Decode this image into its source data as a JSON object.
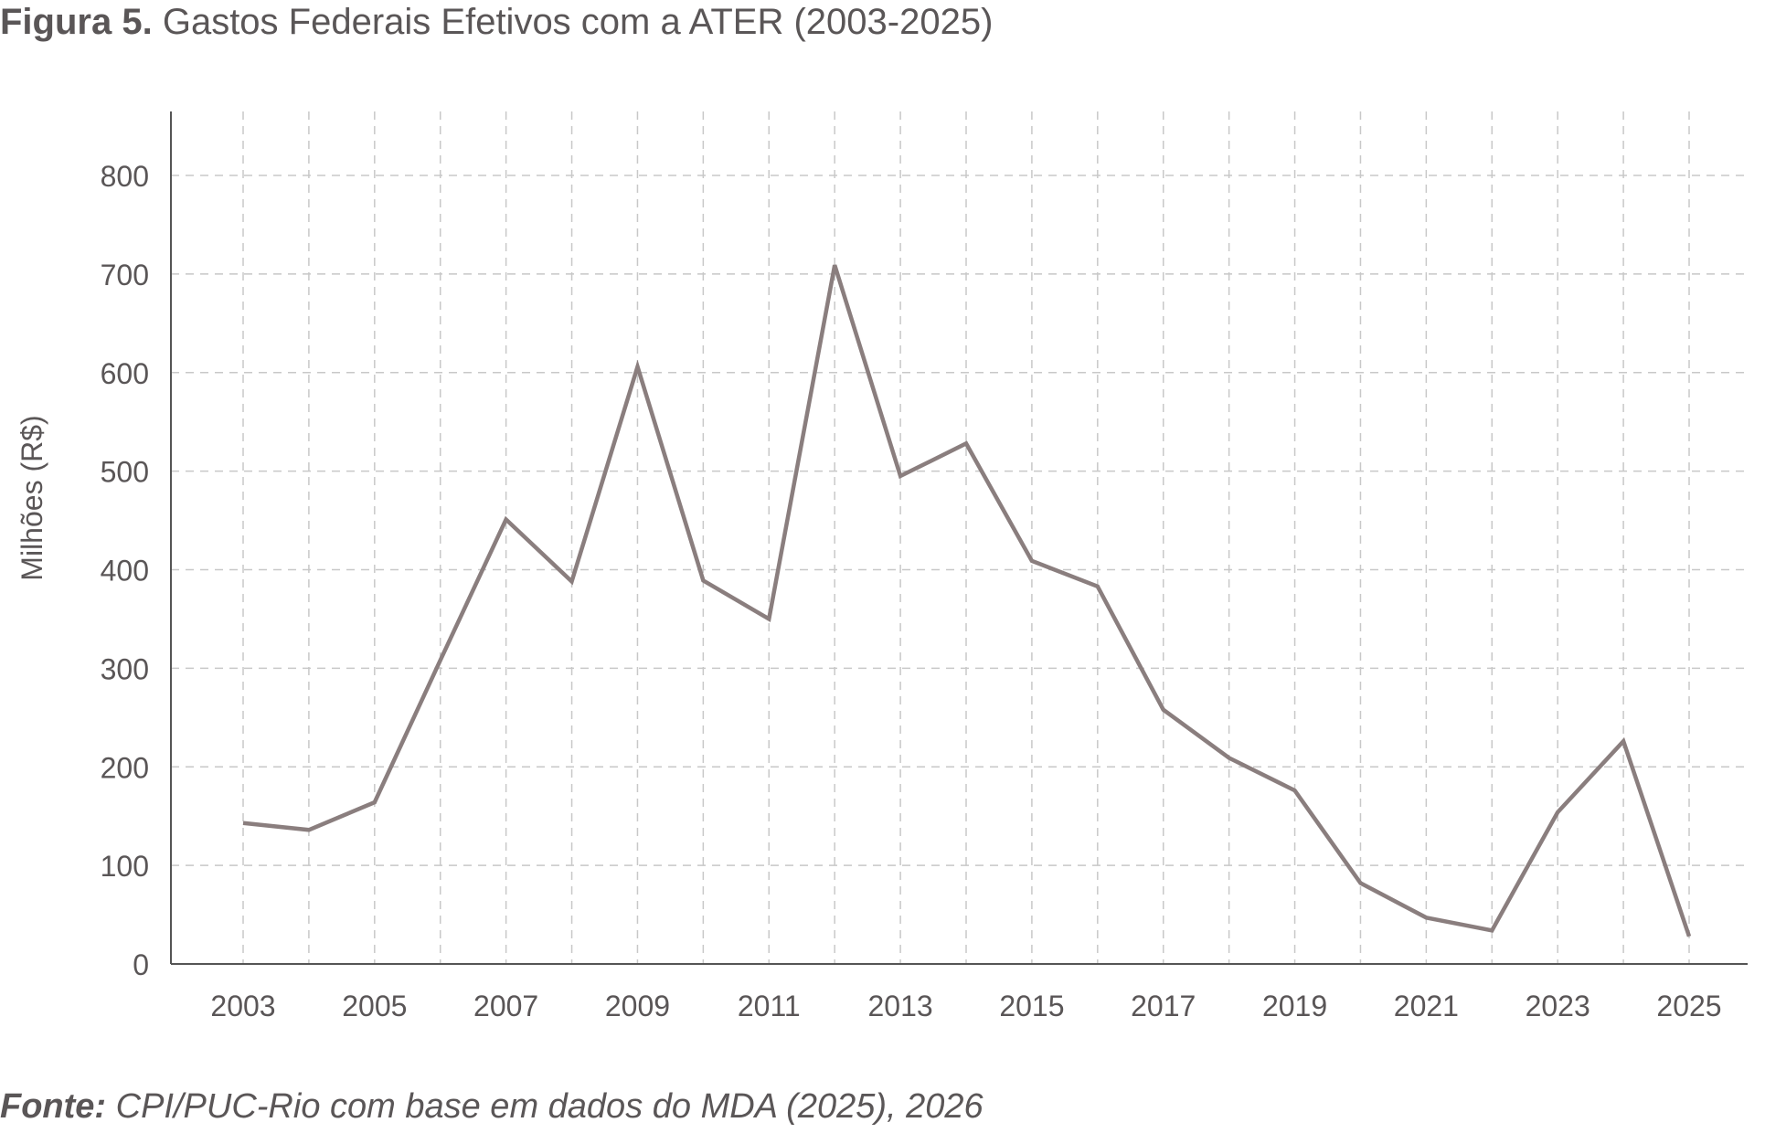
{
  "title": {
    "lead": "Figura 5.",
    "rest": "Gastos Federais Efetivos com a ATER (2003-2025)"
  },
  "source": {
    "lead": "Fonte:",
    "rest": "CPI/PUC-Rio com base em dados do MDA (2025), 2026"
  },
  "chart_data": {
    "type": "line",
    "title": "Gastos Federais Efetivos com a ATER (2003-2025)",
    "xlabel": "",
    "ylabel": "Milhões (R$)",
    "x": [
      2003,
      2004,
      2005,
      2006,
      2007,
      2008,
      2009,
      2010,
      2011,
      2012,
      2013,
      2014,
      2015,
      2016,
      2017,
      2018,
      2019,
      2020,
      2021,
      2022,
      2023,
      2024,
      2025
    ],
    "series": [
      {
        "values": [
          143,
          136,
          164,
          308,
          451,
          388,
          606,
          389,
          350,
          709,
          495,
          528,
          409,
          383,
          258,
          209,
          176,
          82,
          47,
          34,
          154,
          226,
          28
        ]
      }
    ],
    "xticks": [
      "2003",
      "2005",
      "2007",
      "2009",
      "2011",
      "2013",
      "2015",
      "2017",
      "2019",
      "2021",
      "2023",
      "2025"
    ],
    "yticks": [
      "0",
      "100",
      "200",
      "300",
      "400",
      "500",
      "600",
      "700",
      "800"
    ],
    "ylim": [
      0,
      800
    ],
    "xlim": [
      2002,
      2025.8
    ],
    "grid": true,
    "line_color": "#8a7e7e",
    "grid_color": "#c8c8c8",
    "axis_color": "#555555"
  }
}
